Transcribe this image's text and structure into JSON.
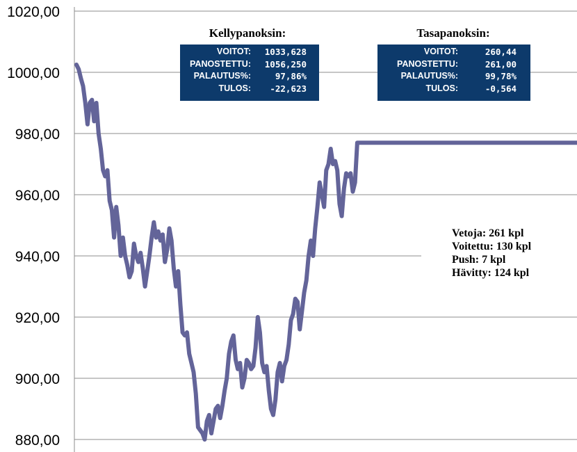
{
  "chart_data": {
    "type": "line",
    "ylim": [
      880,
      1020
    ],
    "yticks": [
      "1020,00",
      "1000,00",
      "980,00",
      "960,00",
      "940,00",
      "920,00",
      "900,00",
      "880,00"
    ],
    "ytick_values": [
      1020,
      1000,
      980,
      960,
      940,
      920,
      900,
      880
    ],
    "grid": true,
    "series": [
      {
        "color": "#636499",
        "x_bets": [
          0,
          2,
          4,
          6,
          8,
          10,
          12,
          14,
          16,
          18,
          20,
          22,
          24,
          26,
          28,
          30,
          32,
          34,
          36,
          38,
          40,
          42,
          44,
          46,
          48,
          50,
          52,
          54,
          56,
          58,
          60,
          62,
          64,
          66,
          68,
          70,
          72,
          74,
          76,
          78,
          80,
          82,
          84,
          86,
          88,
          90,
          92,
          94,
          96,
          98,
          100,
          102,
          104,
          106,
          108,
          110,
          112,
          114,
          116,
          118,
          120,
          122,
          124,
          126,
          128,
          130,
          132,
          134,
          136,
          138,
          140,
          142,
          144,
          146,
          148,
          150,
          152,
          154,
          156,
          158,
          160,
          162,
          164,
          166,
          168,
          170,
          172,
          174,
          176,
          178,
          180,
          182,
          184,
          186,
          188,
          190,
          192,
          194,
          196,
          198,
          200,
          202,
          204,
          206,
          208,
          210,
          212,
          214,
          216,
          218,
          220,
          222,
          224,
          226,
          228,
          230,
          232,
          234,
          236,
          238,
          240,
          242,
          244,
          246,
          248,
          250,
          252,
          254,
          256,
          258,
          261
        ],
        "values": [
          1002.5,
          1001,
          998,
          995.5,
          990,
          983,
          990,
          991,
          984,
          990,
          980,
          975,
          968,
          966,
          968,
          958,
          955,
          946,
          956,
          950,
          940,
          946,
          940,
          937,
          933,
          935,
          944,
          940,
          938,
          941,
          936,
          930,
          935,
          940,
          946,
          951,
          946,
          948,
          945,
          947,
          938,
          942,
          949,
          945,
          936,
          930,
          935,
          924,
          915,
          914,
          915,
          908,
          905,
          902,
          895,
          884,
          883,
          882,
          880,
          886,
          888,
          882,
          886,
          890,
          891,
          887,
          891,
          896,
          900,
          908,
          912,
          914,
          906,
          903,
          905,
          897,
          900,
          906,
          905,
          903,
          904,
          910,
          920,
          915,
          905,
          902,
          904,
          896,
          890,
          888,
          893,
          902,
          905,
          899,
          904,
          906,
          911,
          919,
          921,
          926,
          925,
          916,
          922,
          928,
          932,
          940,
          945,
          940,
          949,
          956,
          964,
          960,
          956,
          968,
          970,
          975,
          970,
          971,
          968,
          957,
          953,
          962,
          967,
          966,
          967,
          961,
          964,
          977,
          977,
          977,
          977
        ],
        "extend_to_right_edge": true
      }
    ]
  },
  "kelly": {
    "title": "Kellypanoksin:",
    "rows": [
      {
        "label": "VOITOT:",
        "value": "1033,628"
      },
      {
        "label": "PANOSTETTU:",
        "value": "1056,250"
      },
      {
        "label": "PALAUTUS%:",
        "value": "97,86%"
      },
      {
        "label": "TULOS:",
        "value": "-22,623"
      }
    ]
  },
  "flat": {
    "title": "Tasapanoksin:",
    "rows": [
      {
        "label": "VOITOT:",
        "value": "260,44"
      },
      {
        "label": "PANOSTETTU:",
        "value": "261,00"
      },
      {
        "label": "PALAUTUS%:",
        "value": "99,78%"
      },
      {
        "label": "TULOS:",
        "value": "-0,564"
      }
    ]
  },
  "summary": [
    "Vetoja: 261 kpl",
    "Voitettu: 130 kpl",
    "Push: 7 kpl",
    "Hävitty: 124 kpl"
  ],
  "colors": {
    "line": "#636499",
    "box_bg": "#0d3a6b",
    "grid": "#8c8c8c"
  }
}
